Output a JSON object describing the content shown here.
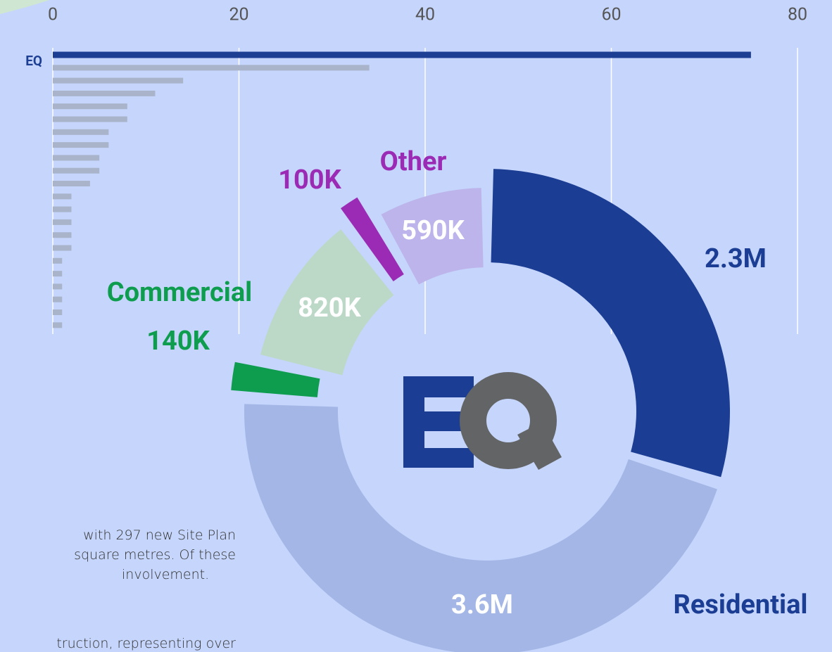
{
  "chart_data": [
    {
      "type": "bar",
      "orientation": "horizontal",
      "categories": [
        "EQ",
        null,
        null,
        null,
        null,
        null,
        null,
        null,
        null,
        null,
        null,
        null,
        null,
        null,
        null,
        null,
        null,
        null,
        null,
        null,
        null,
        null
      ],
      "values": [
        75,
        34,
        14,
        11,
        8,
        8,
        6,
        6,
        5,
        5,
        4,
        2,
        2,
        2,
        2,
        2,
        1,
        1,
        1,
        1,
        1,
        1
      ],
      "colors": [
        "#1c3f94",
        "#a9b4cb",
        "#a9b4cb",
        "#a9b4cb",
        "#a9b4cb",
        "#a9b4cb",
        "#a9b4cb",
        "#a9b4cb",
        "#a9b4cb",
        "#a9b4cb",
        "#a9b4cb",
        "#a9b4cb",
        "#a9b4cb",
        "#a9b4cb",
        "#a9b4cb",
        "#a9b4cb",
        "#a9b4cb",
        "#a9b4cb",
        "#a9b4cb",
        "#a9b4cb",
        "#a9b4cb",
        "#a9b4cb"
      ],
      "xlim": [
        0,
        80
      ],
      "xticks": [
        0,
        20,
        40,
        60,
        80
      ],
      "grid": true
    },
    {
      "type": "pie",
      "donut": true,
      "values": [
        2300000,
        3600000,
        140000,
        820000,
        100000,
        590000
      ],
      "value_labels": [
        "2.3M",
        "3.6M",
        "140K",
        "820K",
        "100K",
        "590K"
      ],
      "colors": [
        "#1b3d93",
        "#a3b6e6",
        "#0e9d4f",
        "#bcd9c8",
        "#9b2bb5",
        "#bcb4ea"
      ],
      "label_colors": [
        "#1b3d93",
        "#ffffff",
        "#0e9d4f",
        "#ffffff",
        "#9b2bb5",
        "#ffffff"
      ],
      "groups": [
        {
          "name": "Residential",
          "color": "#1b3d93"
        },
        {
          "name": "Commercial",
          "color": "#0e9d4f"
        },
        {
          "name": "Other",
          "color": "#9b2bb5"
        }
      ]
    }
  ],
  "text": {
    "lines": [
      "with 297 new Site Plan",
      "square metres. Of these",
      "involvement.",
      "truction, representing over"
    ]
  }
}
